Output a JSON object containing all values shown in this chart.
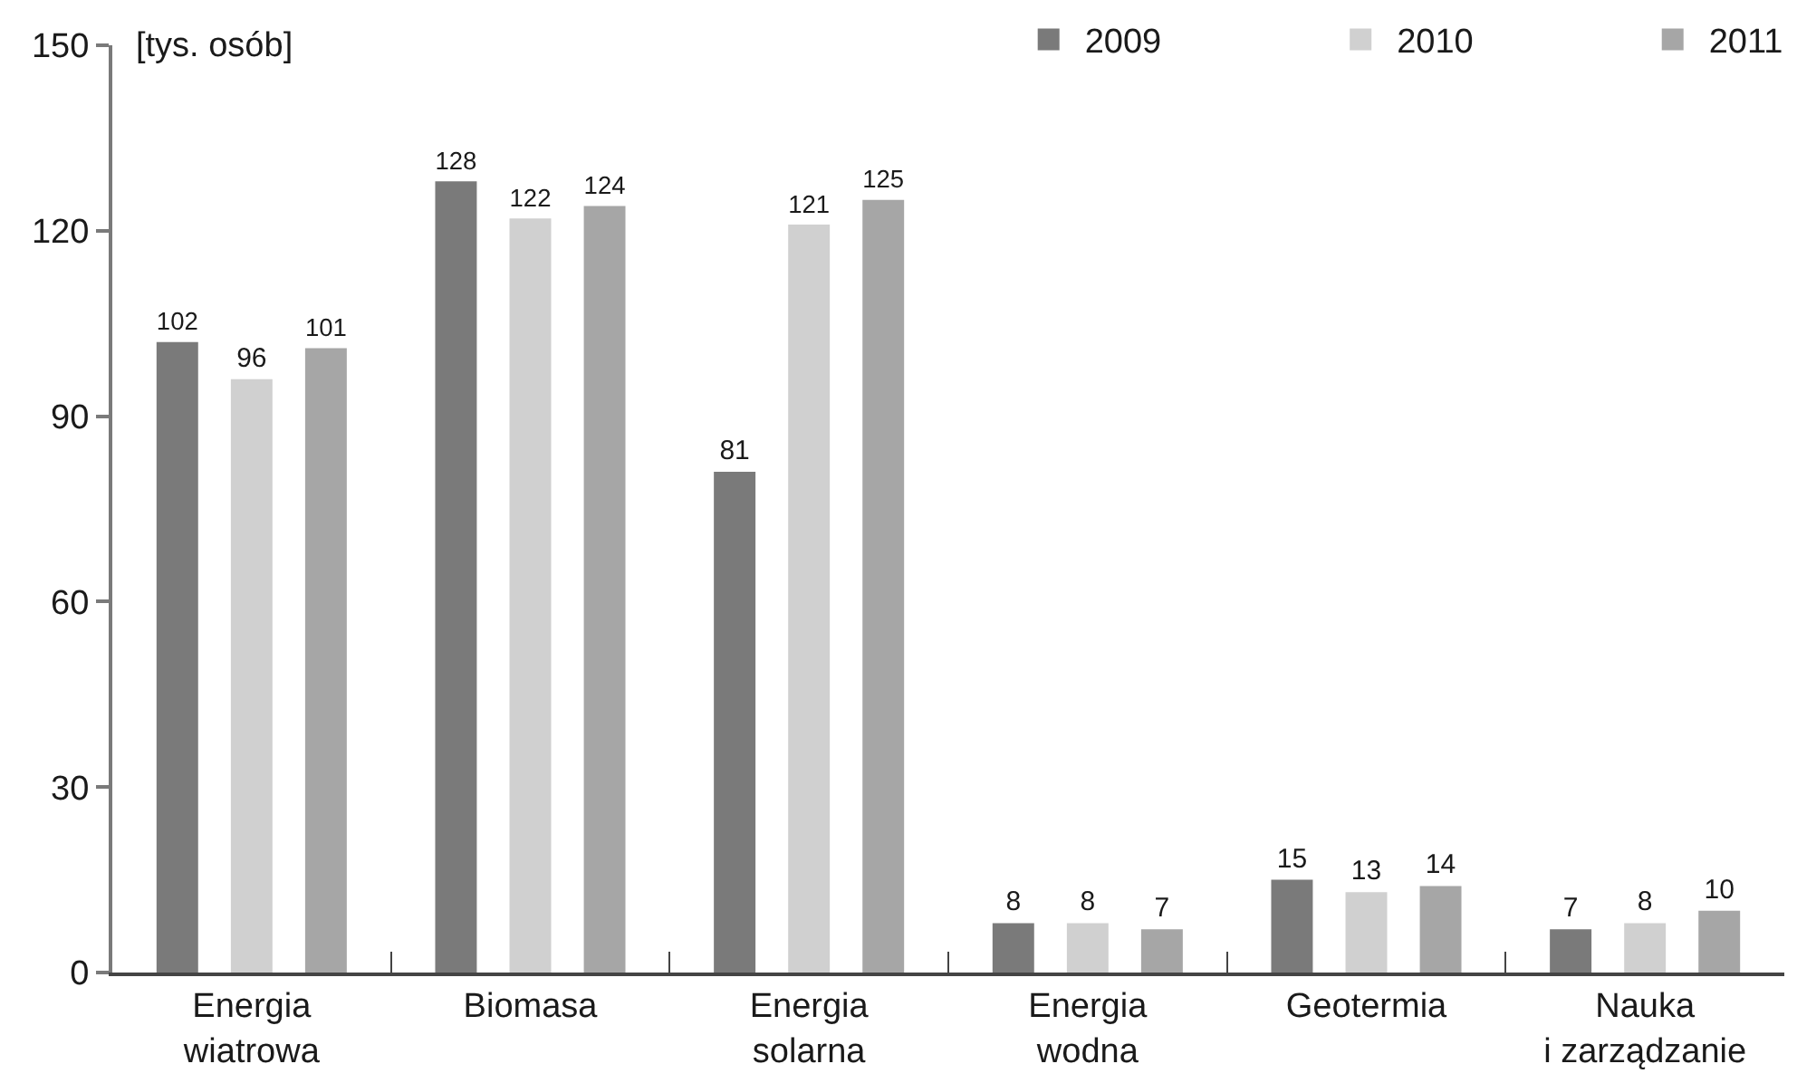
{
  "chart_data": {
    "type": "bar",
    "ylabel": "[tys. osób]",
    "categories": [
      "Energia\nwiatrowa",
      "Biomasa",
      "Energia\nsolarna",
      "Energia\nwodna",
      "Geotermia",
      "Nauka\ni zarządzanie"
    ],
    "series": [
      {
        "name": "2009",
        "color": "#7a7a7a",
        "values": [
          102,
          128,
          81,
          8,
          15,
          7
        ]
      },
      {
        "name": "2010",
        "color": "#d0d0d0",
        "values": [
          96,
          122,
          121,
          8,
          13,
          8
        ]
      },
      {
        "name": "2011",
        "color": "#a6a6a6",
        "values": [
          101,
          124,
          125,
          7,
          14,
          10
        ]
      }
    ],
    "ylim": [
      0,
      150
    ],
    "yticks": [
      0,
      30,
      60,
      90,
      120,
      150
    ],
    "data_labels": true,
    "grid": false,
    "legend": "top right"
  }
}
